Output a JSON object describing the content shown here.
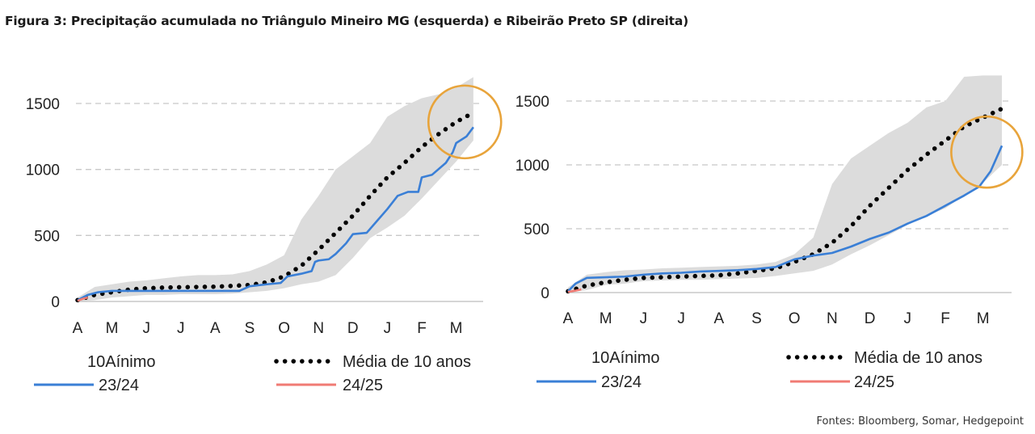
{
  "title": "Figura 3: Precipitação acumulada no Triângulo Mineiro MG (esquerda) e Ribeirão Preto SP (direita)",
  "source": "Fontes: Bloomberg, Somar, Hedgepoint",
  "colors": {
    "band": "#dcdcdc",
    "series_2324": "#3a7fd6",
    "series_2425": "#f07b74",
    "average": "#000000",
    "highlight_circle": "#e8a43b",
    "grid": "#c8c8c8"
  },
  "chart_data": [
    {
      "type": "line",
      "x_tick_labels": [
        "A",
        "M",
        "J",
        "J",
        "A",
        "S",
        "O",
        "N",
        "D",
        "J",
        "F",
        "M"
      ],
      "y_tick_labels": [
        "0",
        "500",
        "1000",
        "1500"
      ],
      "ylim": [
        0,
        1700
      ],
      "grid": "horizontal dashed",
      "legend": {
        "band_label": "10Aínimo",
        "average_label": "Média de 10 anos",
        "series_2324_label": "23/24",
        "series_2425_label": "24/25",
        "placement": "bottom"
      },
      "x_index": [
        0,
        0.5,
        1,
        1.5,
        2,
        2.5,
        3,
        3.5,
        4,
        4.5,
        5,
        5.5,
        6,
        6.5,
        7,
        7.5,
        8,
        8.5,
        9,
        9.5,
        10,
        10.5,
        11,
        11.5
      ],
      "band_low": [
        0,
        10,
        30,
        40,
        50,
        50,
        55,
        55,
        55,
        60,
        70,
        80,
        100,
        130,
        150,
        200,
        330,
        480,
        560,
        650,
        780,
        920,
        1060,
        1220
      ],
      "band_high": [
        30,
        110,
        130,
        150,
        160,
        175,
        190,
        200,
        200,
        205,
        230,
        280,
        350,
        620,
        800,
        1000,
        1100,
        1200,
        1400,
        1480,
        1540,
        1570,
        1620,
        1700
      ],
      "average": [
        10,
        50,
        70,
        90,
        100,
        105,
        108,
        110,
        112,
        118,
        125,
        145,
        190,
        270,
        390,
        520,
        650,
        800,
        940,
        1050,
        1170,
        1270,
        1360,
        1430
      ],
      "series_2324": [
        {
          "x": 0,
          "y": 10
        },
        {
          "x": 0.3,
          "y": 50
        },
        {
          "x": 0.6,
          "y": 70
        },
        {
          "x": 1,
          "y": 80
        },
        {
          "x": 1.5,
          "y": 80
        },
        {
          "x": 2,
          "y": 80
        },
        {
          "x": 3,
          "y": 80
        },
        {
          "x": 4,
          "y": 80
        },
        {
          "x": 4.7,
          "y": 80
        },
        {
          "x": 5,
          "y": 115
        },
        {
          "x": 5.5,
          "y": 130
        },
        {
          "x": 5.9,
          "y": 140
        },
        {
          "x": 6.1,
          "y": 190
        },
        {
          "x": 6.5,
          "y": 210
        },
        {
          "x": 6.8,
          "y": 230
        },
        {
          "x": 6.9,
          "y": 300
        },
        {
          "x": 7,
          "y": 310
        },
        {
          "x": 7.3,
          "y": 320
        },
        {
          "x": 7.5,
          "y": 360
        },
        {
          "x": 7.8,
          "y": 440
        },
        {
          "x": 8,
          "y": 510
        },
        {
          "x": 8.4,
          "y": 520
        },
        {
          "x": 8.7,
          "y": 610
        },
        {
          "x": 9,
          "y": 700
        },
        {
          "x": 9.3,
          "y": 800
        },
        {
          "x": 9.6,
          "y": 830
        },
        {
          "x": 9.9,
          "y": 830
        },
        {
          "x": 10,
          "y": 940
        },
        {
          "x": 10.3,
          "y": 960
        },
        {
          "x": 10.7,
          "y": 1050
        },
        {
          "x": 10.9,
          "y": 1130
        },
        {
          "x": 11,
          "y": 1200
        },
        {
          "x": 11.3,
          "y": 1250
        },
        {
          "x": 11.5,
          "y": 1320
        }
      ],
      "series_2425": [
        {
          "x": 0,
          "y": 5
        },
        {
          "x": 0.15,
          "y": 20
        },
        {
          "x": 0.3,
          "y": 30
        }
      ],
      "highlight": {
        "shape": "circle",
        "x": 11.25,
        "y": 1360
      }
    },
    {
      "type": "line",
      "x_tick_labels": [
        "A",
        "M",
        "J",
        "J",
        "A",
        "S",
        "O",
        "N",
        "D",
        "J",
        "F",
        "M"
      ],
      "y_tick_labels": [
        "0",
        "500",
        "1000",
        "1500"
      ],
      "ylim": [
        0,
        1700
      ],
      "grid": "horizontal dashed",
      "legend": {
        "band_label": "10Aínimo",
        "average_label": "Média de 10 anos",
        "series_2324_label": "23/24",
        "series_2425_label": "24/25",
        "placement": "bottom"
      },
      "x_index": [
        0,
        0.5,
        1,
        1.5,
        2,
        2.5,
        3,
        3.5,
        4,
        4.5,
        5,
        5.5,
        6,
        6.5,
        7,
        7.5,
        8,
        8.5,
        9,
        9.5,
        10,
        10.5,
        11,
        11.5
      ],
      "band_low": [
        0,
        20,
        60,
        70,
        90,
        95,
        100,
        100,
        105,
        110,
        115,
        130,
        150,
        170,
        220,
        300,
        370,
        450,
        530,
        600,
        660,
        760,
        860,
        1000
      ],
      "band_high": [
        40,
        140,
        160,
        175,
        180,
        190,
        195,
        200,
        205,
        210,
        220,
        240,
        300,
        430,
        850,
        1050,
        1150,
        1250,
        1330,
        1450,
        1500,
        1690,
        1700,
        1700
      ],
      "average": [
        10,
        55,
        80,
        100,
        115,
        120,
        125,
        130,
        135,
        150,
        170,
        190,
        240,
        300,
        390,
        520,
        680,
        820,
        960,
        1080,
        1190,
        1300,
        1370,
        1440
      ],
      "series_2324": [
        {
          "x": 0,
          "y": 10
        },
        {
          "x": 0.2,
          "y": 70
        },
        {
          "x": 0.5,
          "y": 115
        },
        {
          "x": 1,
          "y": 120
        },
        {
          "x": 1.5,
          "y": 125
        },
        {
          "x": 2,
          "y": 140
        },
        {
          "x": 2.5,
          "y": 150
        },
        {
          "x": 3,
          "y": 155
        },
        {
          "x": 3.5,
          "y": 165
        },
        {
          "x": 4,
          "y": 170
        },
        {
          "x": 4.5,
          "y": 175
        },
        {
          "x": 5,
          "y": 185
        },
        {
          "x": 5.5,
          "y": 200
        },
        {
          "x": 6,
          "y": 260
        },
        {
          "x": 6.5,
          "y": 290
        },
        {
          "x": 7,
          "y": 310
        },
        {
          "x": 7.5,
          "y": 360
        },
        {
          "x": 8,
          "y": 420
        },
        {
          "x": 8.5,
          "y": 470
        },
        {
          "x": 9,
          "y": 540
        },
        {
          "x": 9.5,
          "y": 600
        },
        {
          "x": 10,
          "y": 680
        },
        {
          "x": 10.5,
          "y": 760
        },
        {
          "x": 10.9,
          "y": 830
        },
        {
          "x": 11.2,
          "y": 950
        },
        {
          "x": 11.5,
          "y": 1150
        }
      ],
      "series_2425": [
        {
          "x": 0,
          "y": 5
        },
        {
          "x": 0.2,
          "y": 15
        },
        {
          "x": 0.35,
          "y": 25
        }
      ],
      "highlight": {
        "shape": "circle",
        "x": 11.1,
        "y": 1100
      }
    }
  ]
}
